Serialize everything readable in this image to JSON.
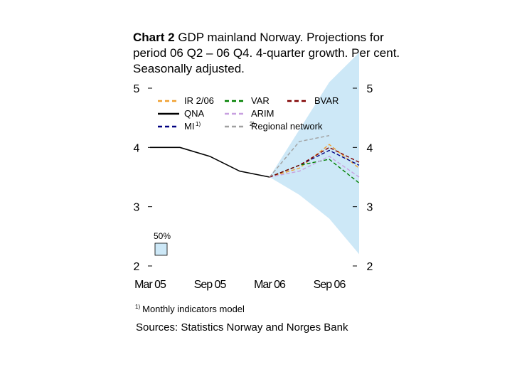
{
  "title": {
    "bold": "Chart 2",
    "text": " GDP mainland Norway. Projections for period 06 Q2 – 06 Q4. 4-quarter growth. Per cent. Seasonally adjusted."
  },
  "chart_data": {
    "type": "line",
    "title": "GDP mainland Norway. Projections for period 06 Q2 – 06 Q4. 4-quarter growth. Per cent. Seasonally adjusted.",
    "x_tick_labels": [
      "Mar 05",
      "Sep 05",
      "Mar 06",
      "Sep 06"
    ],
    "x_tick_index": [
      0,
      2,
      4,
      6
    ],
    "ylim": [
      2,
      5
    ],
    "y_ticks": [
      "2",
      "3",
      "4",
      "5"
    ],
    "x": [
      "05Q1",
      "05Q2",
      "05Q3",
      "05Q4",
      "06Q1",
      "06Q2",
      "06Q3",
      "06Q4"
    ],
    "band": {
      "name": "50%",
      "color": "#cde8f7",
      "lower": [
        null,
        null,
        null,
        null,
        3.5,
        3.2,
        2.8,
        2.2
      ],
      "upper": [
        null,
        null,
        null,
        null,
        3.5,
        4.3,
        5.1,
        5.6
      ]
    },
    "series": [
      {
        "name": "QNA",
        "color": "#000000",
        "dash": "solid",
        "values": [
          4.0,
          4.0,
          3.85,
          3.6,
          3.5,
          null,
          null,
          null
        ]
      },
      {
        "name": "IR 2/06",
        "color": "#f0a030",
        "dash": "dashed",
        "values": [
          null,
          null,
          null,
          null,
          3.5,
          3.65,
          4.05,
          3.65
        ]
      },
      {
        "name": "MI",
        "sup": "1)",
        "color": "#000080",
        "dash": "dashed",
        "values": [
          null,
          null,
          null,
          null,
          3.5,
          3.7,
          3.95,
          3.7
        ]
      },
      {
        "name": "VAR",
        "color": "#008000",
        "dash": "dashed",
        "values": [
          null,
          null,
          null,
          null,
          3.5,
          3.7,
          3.8,
          3.4
        ]
      },
      {
        "name": "ARIM",
        "color": "#c8a0e0",
        "dash": "dashed",
        "values": [
          null,
          null,
          null,
          null,
          3.5,
          3.6,
          3.85,
          3.5
        ]
      },
      {
        "name": "BVAR",
        "color": "#800000",
        "dash": "dashed",
        "values": [
          null,
          null,
          null,
          null,
          3.5,
          3.7,
          4.0,
          3.75
        ]
      },
      {
        "name": "Regional network",
        "sup": "2)",
        "color": "#a0a0a0",
        "dash": "dashed",
        "values": [
          null,
          null,
          null,
          null,
          3.5,
          4.1,
          4.2,
          null
        ]
      }
    ],
    "legend_position": "top"
  },
  "footnote": {
    "sup": "1)",
    "text": "Monthly indicators model"
  },
  "sources": "Sources: Statistics Norway and Norges Bank"
}
